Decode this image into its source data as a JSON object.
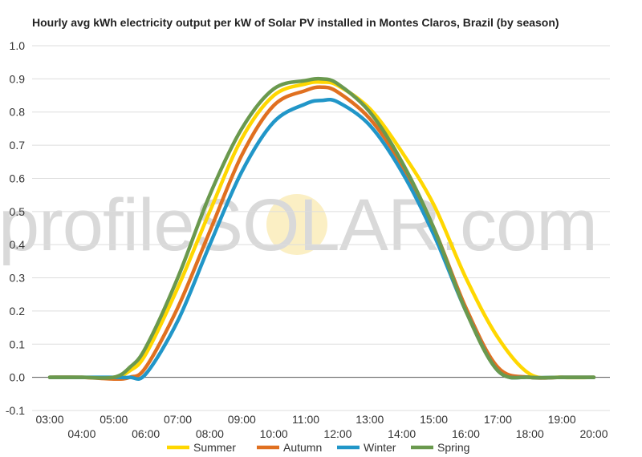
{
  "chart_data": {
    "type": "line",
    "title": "Hourly avg kWh electricity output per kW of Solar PV installed in Montes Claros, Brazil (by season)",
    "xlabel": "",
    "ylabel": "",
    "ylim": [
      -0.1,
      1.0
    ],
    "y_ticks": [
      "-0.1",
      "0.0",
      "0.1",
      "0.2",
      "0.3",
      "0.4",
      "0.5",
      "0.6",
      "0.7",
      "0.8",
      "0.9",
      "1.0"
    ],
    "x_ticks_upper": [
      "03:00",
      "05:00",
      "07:00",
      "09:00",
      "11:00",
      "13:00",
      "15:00",
      "17:00",
      "19:00"
    ],
    "x_ticks_lower": [
      "04:00",
      "06:00",
      "08:00",
      "10:00",
      "12:00",
      "14:00",
      "16:00",
      "18:00",
      "20:00"
    ],
    "grid": true,
    "legend_position": "bottom",
    "watermark": "profileSOLAR.com",
    "series": [
      {
        "name": "Summer",
        "color": "#FFD700",
        "x": [
          "03:00",
          "04:00",
          "05:00",
          "05:30",
          "06:00",
          "07:00",
          "08:00",
          "09:00",
          "10:00",
          "11:00",
          "11:30",
          "12:00",
          "13:00",
          "14:00",
          "15:00",
          "16:00",
          "17:00",
          "18:00",
          "19:00",
          "20:00"
        ],
        "values": [
          0.0,
          0.0,
          0.0,
          0.02,
          0.07,
          0.27,
          0.5,
          0.72,
          0.85,
          0.885,
          0.89,
          0.88,
          0.81,
          0.68,
          0.52,
          0.3,
          0.12,
          0.01,
          0.0,
          0.0
        ]
      },
      {
        "name": "Autumn",
        "color": "#E07020",
        "x": [
          "03:00",
          "04:00",
          "05:00",
          "05:30",
          "06:00",
          "07:00",
          "08:00",
          "09:00",
          "10:00",
          "11:00",
          "11:30",
          "12:00",
          "13:00",
          "14:00",
          "15:00",
          "16:00",
          "17:00",
          "18:00",
          "19:00",
          "20:00"
        ],
        "values": [
          0.0,
          0.0,
          -0.005,
          0.0,
          0.03,
          0.21,
          0.44,
          0.67,
          0.82,
          0.865,
          0.875,
          0.86,
          0.78,
          0.64,
          0.45,
          0.21,
          0.03,
          0.0,
          0.0,
          0.0
        ]
      },
      {
        "name": "Winter",
        "color": "#2196C8",
        "x": [
          "03:00",
          "04:00",
          "05:00",
          "05:30",
          "06:00",
          "07:00",
          "08:00",
          "09:00",
          "10:00",
          "11:00",
          "11:30",
          "12:00",
          "13:00",
          "14:00",
          "15:00",
          "16:00",
          "17:00",
          "18:00",
          "19:00",
          "20:00"
        ],
        "values": [
          0.0,
          0.0,
          0.0,
          0.0,
          0.01,
          0.17,
          0.4,
          0.62,
          0.77,
          0.825,
          0.835,
          0.83,
          0.76,
          0.62,
          0.43,
          0.2,
          0.02,
          0.0,
          0.0,
          0.0
        ]
      },
      {
        "name": "Spring",
        "color": "#6A994E",
        "x": [
          "03:00",
          "04:00",
          "05:00",
          "05:30",
          "06:00",
          "07:00",
          "08:00",
          "09:00",
          "10:00",
          "11:00",
          "11:30",
          "12:00",
          "13:00",
          "14:00",
          "15:00",
          "16:00",
          "17:00",
          "18:00",
          "19:00",
          "20:00"
        ],
        "values": [
          0.0,
          0.0,
          0.0,
          0.03,
          0.09,
          0.3,
          0.55,
          0.75,
          0.87,
          0.895,
          0.9,
          0.885,
          0.8,
          0.65,
          0.45,
          0.2,
          0.02,
          0.0,
          0.0,
          0.0
        ]
      }
    ]
  }
}
